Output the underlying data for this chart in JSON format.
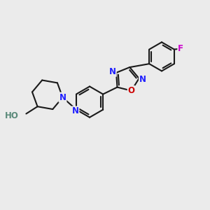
{
  "bg_color": "#ebebeb",
  "bond_color": "#1a1a1a",
  "N_color": "#2020ff",
  "O_color": "#cc0000",
  "F_color": "#cc00cc",
  "H_color": "#5a8a7a",
  "bond_width": 1.5,
  "fig_size": [
    3.0,
    3.0
  ],
  "dpi": 100,
  "xlim": [
    0,
    10
  ],
  "ylim": [
    0,
    10
  ]
}
